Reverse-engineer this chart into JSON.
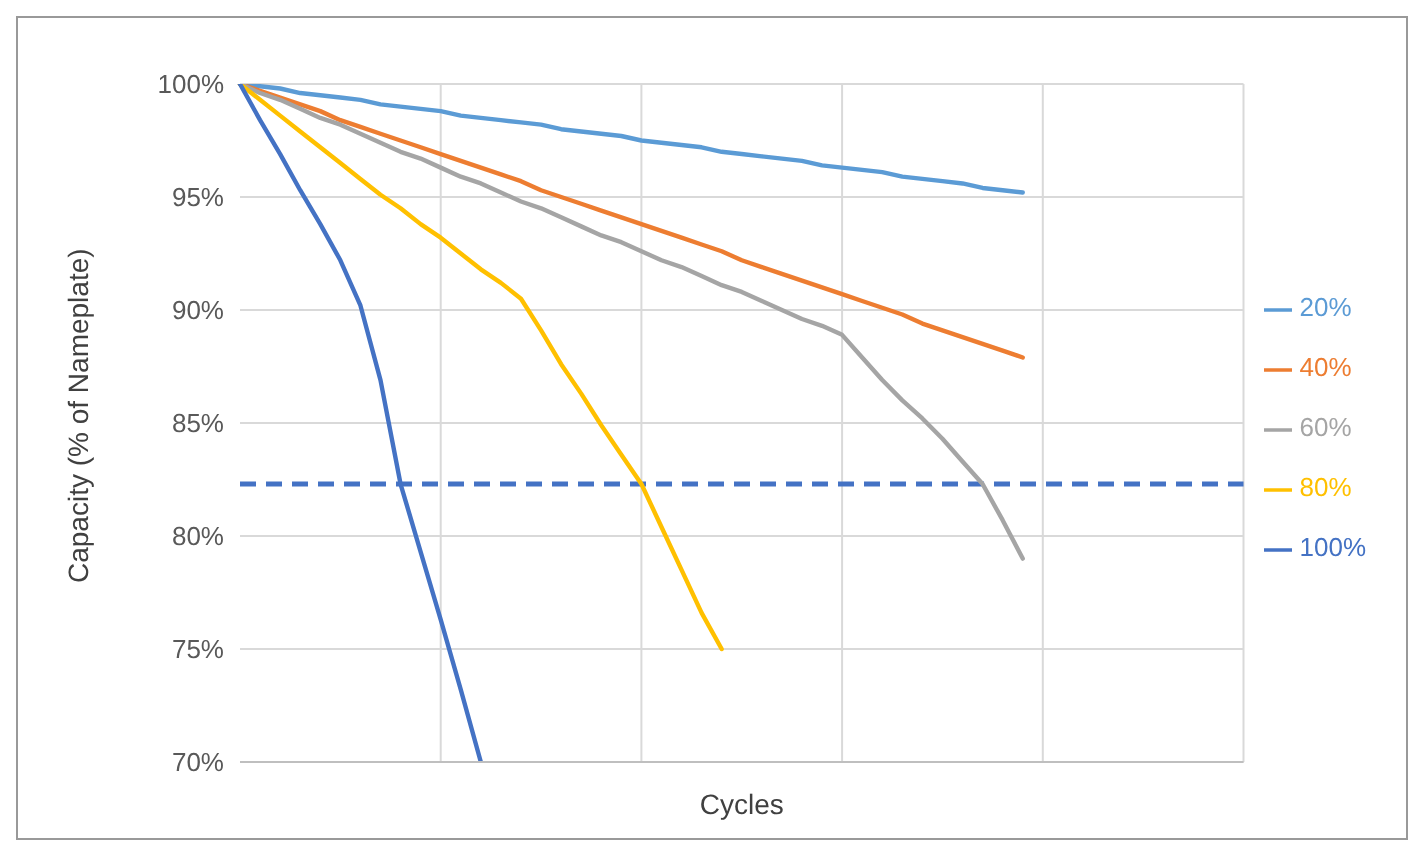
{
  "chart_data": {
    "type": "line",
    "xlabel": "Cycles",
    "ylabel": "Capacity (% of Nameplate)",
    "categories": [
      null,
      null,
      null,
      null,
      null,
      null,
      null,
      null,
      null,
      null,
      null,
      null,
      null,
      null,
      null,
      null,
      null,
      null,
      null,
      null,
      null,
      null,
      null,
      null,
      null,
      null,
      null,
      null,
      null,
      null,
      null,
      null,
      null,
      null,
      null,
      null,
      null,
      null,
      null,
      null,
      null,
      null,
      null,
      null,
      null,
      null,
      null,
      null,
      null,
      null,
      null
    ],
    "ylim": [
      70,
      100
    ],
    "yticks": [
      {
        "value": 70,
        "label": "70%"
      },
      {
        "value": 75,
        "label": "75%"
      },
      {
        "value": 80,
        "label": "80%"
      },
      {
        "value": 85,
        "label": "85%"
      },
      {
        "value": 90,
        "label": "90%"
      },
      {
        "value": 95,
        "label": "95%"
      },
      {
        "value": 100,
        "label": "100%"
      }
    ],
    "tick_labels": "y",
    "grid": true,
    "legend": "right",
    "marker": "none",
    "line_style": "solid",
    "ref_lines": [
      {
        "axis": "y",
        "value": 82.3,
        "color": "#4472c4",
        "line_style": "dashed"
      }
    ],
    "series": [
      {
        "name": "20%",
        "color": "#5b9bd5",
        "values": [
          100,
          99.9,
          99.8,
          99.6,
          99.5,
          99.4,
          99.3,
          99.1,
          99.0,
          98.9,
          98.8,
          98.6,
          98.5,
          98.4,
          98.3,
          98.2,
          98.0,
          97.9,
          97.8,
          97.7,
          97.5,
          97.4,
          97.3,
          97.2,
          97.0,
          96.9,
          96.8,
          96.7,
          96.6,
          96.4,
          96.3,
          96.2,
          96.1,
          95.9,
          95.8,
          95.7,
          95.6,
          95.4,
          95.3,
          95.2,
          null,
          null,
          null,
          null,
          null,
          null,
          null,
          null,
          null,
          null,
          null
        ]
      },
      {
        "name": "40%",
        "color": "#ed7d31",
        "values": [
          100,
          99.7,
          99.4,
          99.1,
          98.8,
          98.4,
          98.1,
          97.8,
          97.5,
          97.2,
          96.9,
          96.6,
          96.3,
          96.0,
          95.7,
          95.3,
          95.0,
          94.7,
          94.4,
          94.1,
          93.8,
          93.5,
          93.2,
          92.9,
          92.6,
          92.2,
          91.9,
          91.6,
          91.3,
          91.0,
          90.7,
          90.4,
          90.1,
          89.8,
          89.4,
          89.1,
          88.8,
          88.5,
          88.2,
          87.9,
          null,
          null,
          null,
          null,
          null,
          null,
          null,
          null,
          null,
          null,
          null
        ]
      },
      {
        "name": "60%",
        "color": "#a5a5a5",
        "values": [
          100,
          99.6,
          99.3,
          98.9,
          98.5,
          98.2,
          97.8,
          97.4,
          97.0,
          96.7,
          96.3,
          95.9,
          95.6,
          95.2,
          94.8,
          94.5,
          94.1,
          93.7,
          93.3,
          93.0,
          92.6,
          92.2,
          91.9,
          91.5,
          91.1,
          90.8,
          90.4,
          90.0,
          89.6,
          89.3,
          88.9,
          87.9,
          86.9,
          86.0,
          85.2,
          84.3,
          83.3,
          82.3,
          80.7,
          79.0,
          null,
          null,
          null,
          null,
          null,
          null,
          null,
          null,
          null,
          null,
          null
        ]
      },
      {
        "name": "80%",
        "color": "#ffc000",
        "values": [
          100,
          99.3,
          98.6,
          97.9,
          97.2,
          96.5,
          95.8,
          95.1,
          94.5,
          93.8,
          93.2,
          92.5,
          91.8,
          91.2,
          90.5,
          89.1,
          87.6,
          86.3,
          84.9,
          83.6,
          82.3,
          80.4,
          78.5,
          76.6,
          75.0,
          null,
          null,
          null,
          null,
          null,
          null,
          null,
          null,
          null,
          null,
          null,
          null,
          null,
          null,
          null,
          null,
          null,
          null,
          null,
          null,
          null,
          null,
          null,
          null,
          null,
          null
        ]
      },
      {
        "name": "100%",
        "color": "#4472c4",
        "values": [
          100,
          98.4,
          96.9,
          95.3,
          93.8,
          92.2,
          90.2,
          86.9,
          82.3,
          79.3,
          76.3,
          73.2,
          70,
          null,
          null,
          null,
          null,
          null,
          null,
          null,
          null,
          null,
          null,
          null,
          null,
          null,
          null,
          null,
          null,
          null,
          null,
          null,
          null,
          null,
          null,
          null,
          null,
          null,
          null,
          null,
          null,
          null,
          null,
          null,
          null,
          null,
          null,
          null,
          null,
          null,
          null
        ]
      }
    ]
  }
}
